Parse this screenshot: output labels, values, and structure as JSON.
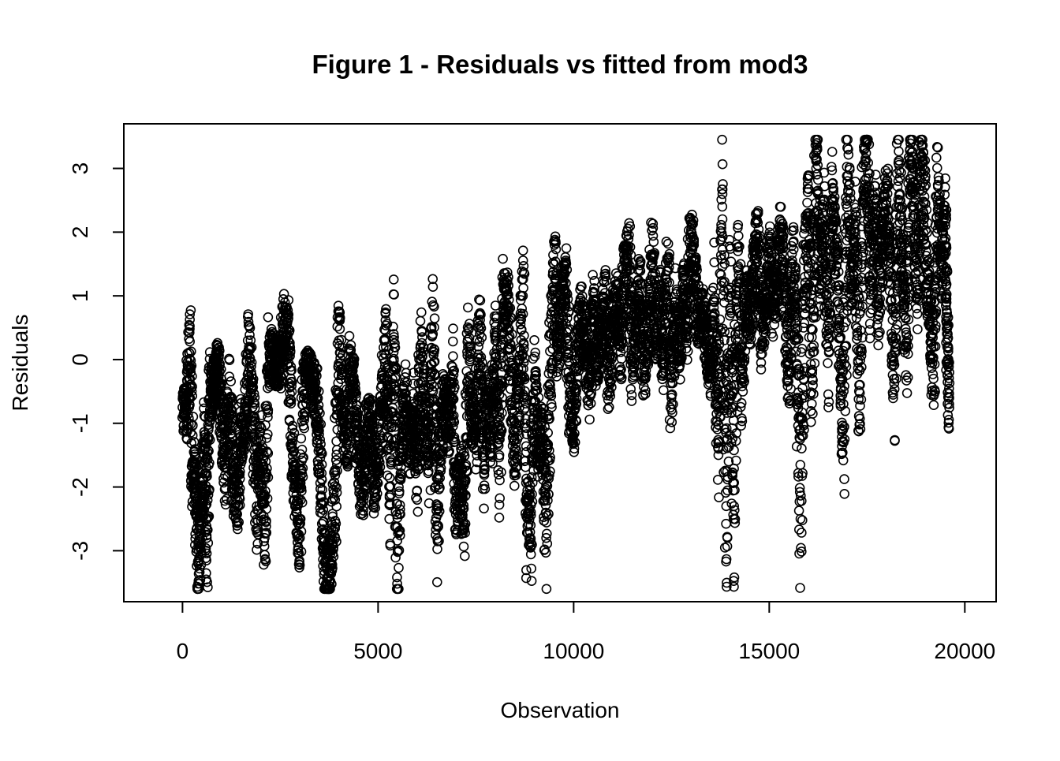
{
  "chart_data": {
    "type": "scatter",
    "title": "Figure 1 - Residuals vs fitted from mod3",
    "xlabel": "Observation",
    "ylabel": "Residuals",
    "xlim": [
      -1500,
      20800
    ],
    "ylim": [
      -3.8,
      3.7
    ],
    "x_ticks": [
      0,
      5000,
      10000,
      15000,
      20000
    ],
    "x_tick_labels": [
      "0",
      "5000",
      "10000",
      "15000",
      "20000"
    ],
    "y_ticks": [
      -3,
      -2,
      -1,
      0,
      1,
      2,
      3
    ],
    "y_tick_labels": [
      "-3",
      "-2",
      "-1",
      "0",
      "1",
      "2",
      "3"
    ],
    "marker": "open-circle",
    "point_color": "#000000",
    "grid": false,
    "legend": "none",
    "n_observations": 19600,
    "series": [
      {
        "values": [
          [
            0,
            -0.75
          ],
          [
            100,
            -0.8
          ],
          [
            180,
            0.1
          ],
          [
            260,
            -1.6
          ],
          [
            330,
            -2.1
          ],
          [
            400,
            -3.2
          ],
          [
            480,
            -2.6
          ],
          [
            560,
            -1.4
          ],
          [
            620,
            -2.8
          ],
          [
            700,
            -0.6
          ],
          [
            780,
            -0.4
          ],
          [
            850,
            -0.3
          ],
          [
            900,
            -0.1
          ],
          [
            1000,
            -0.9
          ],
          [
            1100,
            -1.7
          ],
          [
            1200,
            -0.6
          ],
          [
            1300,
            -1.9
          ],
          [
            1400,
            -2.2
          ],
          [
            1500,
            -1.2
          ],
          [
            1600,
            -1.0
          ],
          [
            1700,
            0.2
          ],
          [
            1800,
            -0.9
          ],
          [
            1900,
            -2.3
          ],
          [
            2000,
            -1.4
          ],
          [
            2100,
            -2.8
          ],
          [
            2200,
            -0.1
          ],
          [
            2300,
            0.1
          ],
          [
            2400,
            -0.1
          ],
          [
            2500,
            0.0
          ],
          [
            2600,
            0.6
          ],
          [
            2700,
            0.3
          ],
          [
            2800,
            -1.4
          ],
          [
            2900,
            -2.0
          ],
          [
            3000,
            -2.8
          ],
          [
            3100,
            -0.6
          ],
          [
            3200,
            -0.2
          ],
          [
            3300,
            -0.3
          ],
          [
            3400,
            -0.5
          ],
          [
            3500,
            -1.4
          ],
          [
            3600,
            -2.8
          ],
          [
            3700,
            -3.6
          ],
          [
            3800,
            -3.0
          ],
          [
            3900,
            -2.2
          ],
          [
            4000,
            0.3
          ],
          [
            4100,
            -0.9
          ],
          [
            4200,
            -1.3
          ],
          [
            4300,
            -0.1
          ],
          [
            4400,
            -0.5
          ],
          [
            4500,
            -1.5
          ],
          [
            4600,
            -2.1
          ],
          [
            4700,
            -1.2
          ],
          [
            4800,
            -0.9
          ],
          [
            4900,
            -1.9
          ],
          [
            5000,
            -1.4
          ],
          [
            5100,
            -0.7
          ],
          [
            5200,
            0.2
          ],
          [
            5300,
            -2.0
          ],
          [
            5400,
            0.4
          ],
          [
            5500,
            -3.0
          ],
          [
            5600,
            -1.2
          ],
          [
            5700,
            -0.6
          ],
          [
            5800,
            -1.4
          ],
          [
            5900,
            -0.8
          ],
          [
            6000,
            -1.7
          ],
          [
            6100,
            0.1
          ],
          [
            6200,
            -1.0
          ],
          [
            6300,
            -1.5
          ],
          [
            6400,
            0.4
          ],
          [
            6500,
            -2.6
          ],
          [
            6600,
            -1.2
          ],
          [
            6700,
            -0.6
          ],
          [
            6800,
            -1.1
          ],
          [
            6900,
            -0.3
          ],
          [
            7000,
            -2.3
          ],
          [
            7100,
            -1.8
          ],
          [
            7200,
            -2.6
          ],
          [
            7300,
            0.2
          ],
          [
            7400,
            -0.9
          ],
          [
            7500,
            -1.1
          ],
          [
            7600,
            0.4
          ],
          [
            7700,
            -1.5
          ],
          [
            7800,
            -0.5
          ],
          [
            7900,
            -1.2
          ],
          [
            8000,
            0.3
          ],
          [
            8100,
            -1.5
          ],
          [
            8200,
            0.8
          ],
          [
            8300,
            1.1
          ],
          [
            8400,
            -0.2
          ],
          [
            8500,
            -1.4
          ],
          [
            8600,
            -0.5
          ],
          [
            8700,
            1.0
          ],
          [
            8800,
            -2.2
          ],
          [
            8900,
            -2.6
          ],
          [
            9000,
            -0.3
          ],
          [
            9100,
            -1.4
          ],
          [
            9200,
            -1.1
          ],
          [
            9300,
            -2.8
          ],
          [
            9400,
            -0.4
          ],
          [
            9500,
            1.5
          ],
          [
            9600,
            0.2
          ],
          [
            9700,
            0.9
          ],
          [
            9800,
            1.2
          ],
          [
            9900,
            -0.6
          ],
          [
            10000,
            -1.0
          ],
          [
            10100,
            0.2
          ],
          [
            10200,
            0.7
          ],
          [
            10300,
            0.3
          ],
          [
            10400,
            -0.4
          ],
          [
            10500,
            0.8
          ],
          [
            10600,
            -0.1
          ],
          [
            10700,
            0.4
          ],
          [
            10800,
            0.9
          ],
          [
            10900,
            -0.3
          ],
          [
            11000,
            0.5
          ],
          [
            11100,
            1.0
          ],
          [
            11200,
            0.2
          ],
          [
            11300,
            1.3
          ],
          [
            11400,
            1.7
          ],
          [
            11500,
            0.0
          ],
          [
            11600,
            0.6
          ],
          [
            11700,
            1.2
          ],
          [
            11800,
            -0.2
          ],
          [
            11900,
            0.4
          ],
          [
            12000,
            1.6
          ],
          [
            12100,
            0.3
          ],
          [
            12200,
            0.9
          ],
          [
            12300,
            0.0
          ],
          [
            12400,
            1.4
          ],
          [
            12500,
            -0.6
          ],
          [
            12600,
            0.8
          ],
          [
            12700,
            0.2
          ],
          [
            12800,
            1.1
          ],
          [
            12900,
            0.5
          ],
          [
            13000,
            2.0
          ],
          [
            13100,
            1.3
          ],
          [
            13200,
            0.6
          ],
          [
            13300,
            0.7
          ],
          [
            13400,
            0.2
          ],
          [
            13500,
            -0.1
          ],
          [
            13600,
            0.9
          ],
          [
            13700,
            -1.4
          ],
          [
            13800,
            2.4
          ],
          [
            13900,
            -2.3
          ],
          [
            14000,
            0.8
          ],
          [
            14100,
            -2.3
          ],
          [
            14200,
            1.7
          ],
          [
            14300,
            -0.3
          ],
          [
            14400,
            1.0
          ],
          [
            14500,
            0.6
          ],
          [
            14600,
            1.3
          ],
          [
            14700,
            1.9
          ],
          [
            14800,
            0.5
          ],
          [
            14900,
            0.8
          ],
          [
            15000,
            1.6
          ],
          [
            15100,
            0.9
          ],
          [
            15200,
            1.2
          ],
          [
            15300,
            2.0
          ],
          [
            15400,
            1.1
          ],
          [
            15500,
            -0.2
          ],
          [
            15600,
            1.5
          ],
          [
            15700,
            0.6
          ],
          [
            15800,
            -2.5
          ],
          [
            15900,
            1.1
          ],
          [
            16000,
            2.3
          ],
          [
            16100,
            -0.3
          ],
          [
            16200,
            3.0
          ],
          [
            16300,
            1.4
          ],
          [
            16400,
            2.1
          ],
          [
            16500,
            0.2
          ],
          [
            16600,
            2.5
          ],
          [
            16700,
            1.7
          ],
          [
            16800,
            0.5
          ],
          [
            16900,
            -1.3
          ],
          [
            17000,
            2.8
          ],
          [
            17100,
            1.2
          ],
          [
            17200,
            2.0
          ],
          [
            17300,
            -0.4
          ],
          [
            17400,
            2.5
          ],
          [
            17500,
            3.4
          ],
          [
            17600,
            1.1
          ],
          [
            17700,
            2.3
          ],
          [
            17800,
            0.9
          ],
          [
            17900,
            2.0
          ],
          [
            18000,
            2.5
          ],
          [
            18100,
            1.3
          ],
          [
            18200,
            -0.3
          ],
          [
            18300,
            2.8
          ],
          [
            18400,
            1.6
          ],
          [
            18500,
            0.2
          ],
          [
            18600,
            3.3
          ],
          [
            18700,
            2.4
          ],
          [
            18800,
            1.1
          ],
          [
            18900,
            3.2
          ],
          [
            19000,
            1.8
          ],
          [
            19100,
            0.8
          ],
          [
            19200,
            -0.3
          ],
          [
            19300,
            2.5
          ],
          [
            19400,
            1.4
          ],
          [
            19500,
            2.1
          ],
          [
            19550,
            0.2
          ],
          [
            19600,
            -0.7
          ]
        ]
      }
    ]
  }
}
